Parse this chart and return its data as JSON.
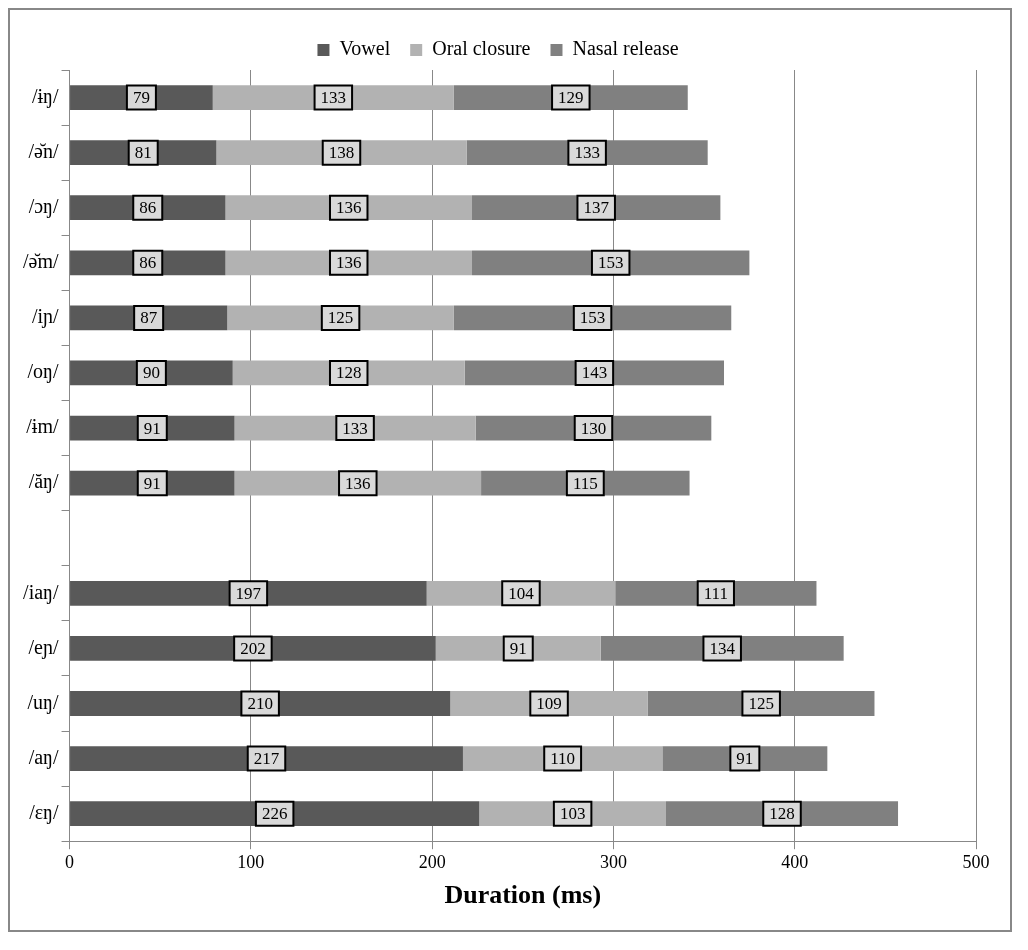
{
  "chart_data": {
    "type": "bar",
    "orientation": "horizontal",
    "stacked": true,
    "xlabel": "Duration (ms)",
    "categories": [
      "/ɨŋ/",
      "/ə̆n/",
      "/ɔŋ/",
      "/ə̆m/",
      "/iɲ/",
      "/oŋ/",
      "/ɨm/",
      "/ăŋ/",
      null,
      "/iaŋ/",
      "/eɲ/",
      "/uŋ/",
      "/aŋ/",
      "/ɛŋ/"
    ],
    "series": [
      {
        "name": "Vowel",
        "color": "#595959",
        "values": [
          79,
          81,
          86,
          86,
          87,
          90,
          91,
          91,
          null,
          197,
          202,
          210,
          217,
          226
        ]
      },
      {
        "name": "Oral closure",
        "color": "#b2b2b2",
        "values": [
          133,
          138,
          136,
          136,
          125,
          128,
          133,
          136,
          null,
          104,
          91,
          109,
          110,
          103
        ]
      },
      {
        "name": "Nasal release",
        "color": "#808080",
        "values": [
          129,
          133,
          137,
          153,
          153,
          143,
          130,
          115,
          null,
          111,
          134,
          125,
          91,
          128
        ]
      }
    ],
    "xlim": [
      0,
      500
    ],
    "xticks": [
      0,
      100,
      200,
      300,
      400,
      500
    ],
    "grid": "x",
    "legend": "top",
    "data_labels": true
  }
}
